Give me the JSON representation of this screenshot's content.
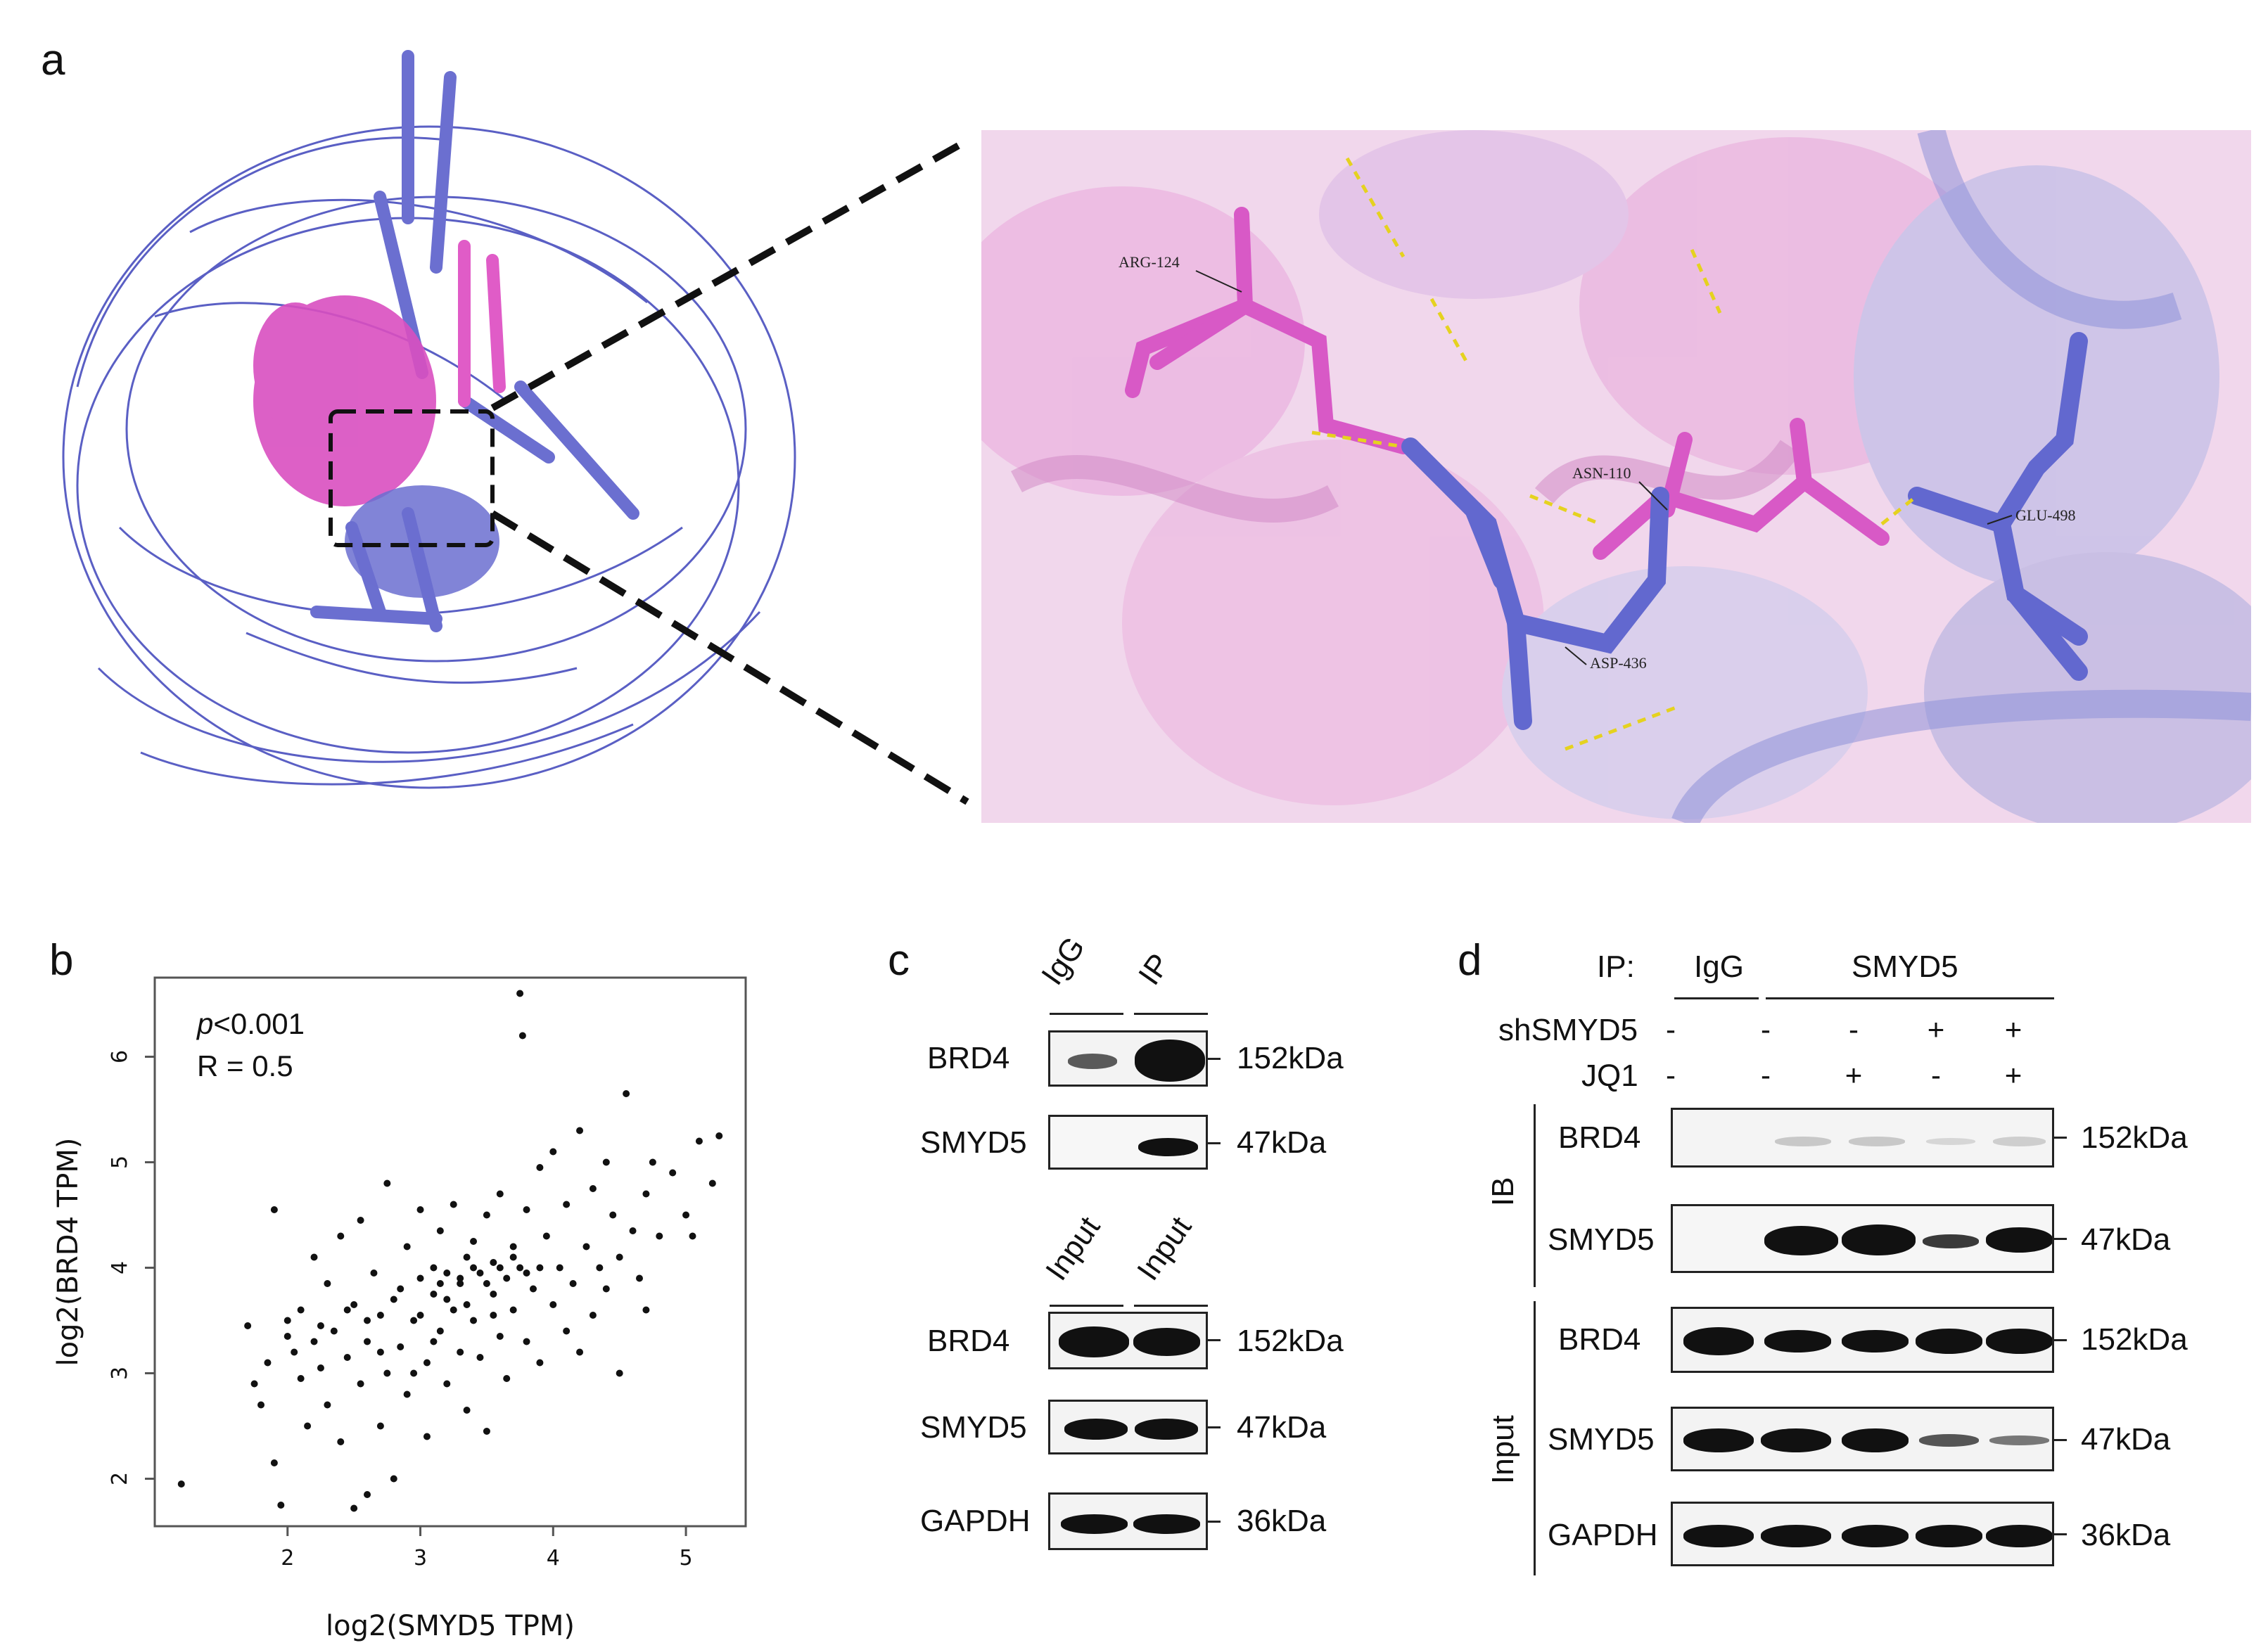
{
  "panels": {
    "a": {
      "label": "a",
      "residues": [
        "ARG-124",
        "ASN-110",
        "ASP-436",
        "GLU-498"
      ]
    },
    "b": {
      "label": "b",
      "p_text_italic": "p",
      "p_text_rest": "<0.001",
      "r_text": "R = 0.5"
    },
    "c": {
      "label": "c"
    },
    "d": {
      "label": "d"
    }
  },
  "chart_data": {
    "type": "scatter",
    "xlabel": "log2(SMYD5 TPM)",
    "ylabel": "log2(BRD4 TPM)",
    "xlim": [
      1.0,
      5.45
    ],
    "ylim": [
      1.55,
      6.75
    ],
    "xticks": [
      "2",
      "3",
      "4",
      "5"
    ],
    "yticks": [
      "2",
      "3",
      "4",
      "5",
      "6"
    ],
    "points": [
      [
        1.2,
        1.95
      ],
      [
        1.7,
        3.45
      ],
      [
        1.75,
        2.9
      ],
      [
        1.8,
        2.7
      ],
      [
        1.85,
        3.1
      ],
      [
        1.9,
        2.15
      ],
      [
        1.95,
        1.75
      ],
      [
        1.9,
        4.55
      ],
      [
        2.0,
        3.5
      ],
      [
        2.05,
        3.2
      ],
      [
        2.1,
        2.95
      ],
      [
        2.1,
        3.6
      ],
      [
        2.15,
        2.5
      ],
      [
        2.2,
        3.3
      ],
      [
        2.2,
        4.1
      ],
      [
        2.25,
        3.05
      ],
      [
        2.3,
        2.7
      ],
      [
        2.3,
        3.85
      ],
      [
        2.35,
        3.4
      ],
      [
        2.4,
        2.35
      ],
      [
        2.4,
        4.3
      ],
      [
        2.45,
        3.15
      ],
      [
        2.5,
        1.72
      ],
      [
        2.5,
        3.65
      ],
      [
        2.55,
        2.9
      ],
      [
        2.55,
        4.45
      ],
      [
        2.6,
        1.85
      ],
      [
        2.6,
        3.3
      ],
      [
        2.65,
        3.95
      ],
      [
        2.7,
        2.5
      ],
      [
        2.7,
        3.55
      ],
      [
        2.75,
        4.8
      ],
      [
        2.75,
        3.0
      ],
      [
        2.8,
        2.0
      ],
      [
        2.8,
        3.7
      ],
      [
        2.85,
        3.25
      ],
      [
        2.9,
        4.2
      ],
      [
        2.9,
        2.8
      ],
      [
        2.95,
        3.5
      ],
      [
        3.0,
        3.9
      ],
      [
        3.0,
        4.55
      ],
      [
        3.05,
        3.1
      ],
      [
        3.05,
        2.4
      ],
      [
        3.1,
        3.75
      ],
      [
        3.1,
        4.0
      ],
      [
        3.15,
        3.4
      ],
      [
        3.15,
        4.35
      ],
      [
        3.2,
        3.95
      ],
      [
        3.2,
        2.9
      ],
      [
        3.25,
        3.6
      ],
      [
        3.25,
        4.6
      ],
      [
        3.3,
        3.2
      ],
      [
        3.3,
        3.85
      ],
      [
        3.35,
        4.1
      ],
      [
        3.35,
        2.65
      ],
      [
        3.4,
        3.5
      ],
      [
        3.4,
        4.25
      ],
      [
        3.45,
        3.95
      ],
      [
        3.45,
        3.15
      ],
      [
        3.5,
        4.5
      ],
      [
        3.5,
        2.45
      ],
      [
        3.55,
        3.75
      ],
      [
        3.55,
        4.05
      ],
      [
        3.6,
        3.35
      ],
      [
        3.6,
        4.7
      ],
      [
        3.65,
        3.9
      ],
      [
        3.65,
        2.95
      ],
      [
        3.7,
        4.2
      ],
      [
        3.7,
        3.6
      ],
      [
        3.75,
        6.6
      ],
      [
        3.77,
        6.2
      ],
      [
        3.75,
        4.0
      ],
      [
        3.8,
        3.3
      ],
      [
        3.8,
        4.55
      ],
      [
        3.85,
        3.8
      ],
      [
        3.9,
        4.95
      ],
      [
        3.9,
        3.1
      ],
      [
        3.95,
        4.3
      ],
      [
        4.0,
        3.65
      ],
      [
        4.0,
        5.1
      ],
      [
        4.05,
        4.0
      ],
      [
        4.1,
        3.4
      ],
      [
        4.1,
        4.6
      ],
      [
        4.15,
        3.85
      ],
      [
        4.2,
        5.3
      ],
      [
        4.2,
        3.2
      ],
      [
        4.25,
        4.2
      ],
      [
        4.3,
        4.75
      ],
      [
        4.3,
        3.55
      ],
      [
        4.35,
        4.0
      ],
      [
        4.4,
        5.0
      ],
      [
        4.4,
        3.8
      ],
      [
        4.45,
        4.5
      ],
      [
        4.5,
        4.1
      ],
      [
        4.5,
        3.0
      ],
      [
        4.55,
        5.65
      ],
      [
        4.6,
        4.35
      ],
      [
        4.65,
        3.9
      ],
      [
        4.7,
        4.7
      ],
      [
        4.7,
        3.6
      ],
      [
        4.75,
        5.0
      ],
      [
        4.8,
        4.3
      ],
      [
        4.9,
        4.9
      ],
      [
        5.0,
        4.5
      ],
      [
        5.05,
        4.3
      ],
      [
        5.1,
        5.2
      ],
      [
        5.2,
        4.8
      ],
      [
        5.25,
        5.25
      ],
      [
        2.0,
        3.35
      ],
      [
        2.25,
        3.45
      ],
      [
        2.45,
        3.6
      ],
      [
        2.6,
        3.5
      ],
      [
        2.85,
        3.8
      ],
      [
        3.0,
        3.55
      ],
      [
        3.1,
        3.3
      ],
      [
        3.2,
        3.7
      ],
      [
        3.3,
        3.9
      ],
      [
        3.4,
        4.0
      ],
      [
        3.5,
        3.85
      ],
      [
        3.6,
        4.0
      ],
      [
        3.7,
        4.1
      ],
      [
        3.8,
        3.95
      ],
      [
        3.9,
        4.0
      ],
      [
        2.7,
        3.2
      ],
      [
        2.95,
        3.0
      ],
      [
        3.15,
        3.85
      ],
      [
        3.35,
        3.65
      ],
      [
        3.55,
        3.55
      ]
    ]
  },
  "blot_c": {
    "ip_headers": [
      "IgG",
      "IP"
    ],
    "input_headers": [
      "Input",
      "Input"
    ],
    "ip_rows": [
      {
        "name": "BRD4",
        "kda": "152kDa"
      },
      {
        "name": "SMYD5",
        "kda": "47kDa"
      }
    ],
    "input_rows": [
      {
        "name": "BRD4",
        "kda": "152kDa"
      },
      {
        "name": "SMYD5",
        "kda": "47kDa"
      },
      {
        "name": "GAPDH",
        "kda": "36kDa"
      }
    ]
  },
  "blot_d": {
    "ip_label": "IP:",
    "igg": "IgG",
    "smyd5": "SMYD5",
    "sh_label": "shSMYD5",
    "jq1_label": "JQ1",
    "sh_signs": [
      "-",
      "-",
      "-",
      "+",
      "+"
    ],
    "jq1_signs": [
      "-",
      "-",
      "+",
      "-",
      "+"
    ],
    "ib_label": "IB",
    "input_label": "Input",
    "rows": [
      {
        "name": "BRD4",
        "kda": "152kDa"
      },
      {
        "name": "SMYD5",
        "kda": "47kDa"
      },
      {
        "name": "BRD4",
        "kda": "152kDa"
      },
      {
        "name": "SMYD5",
        "kda": "47kDa"
      },
      {
        "name": "GAPDH",
        "kda": "36kDa"
      }
    ]
  }
}
